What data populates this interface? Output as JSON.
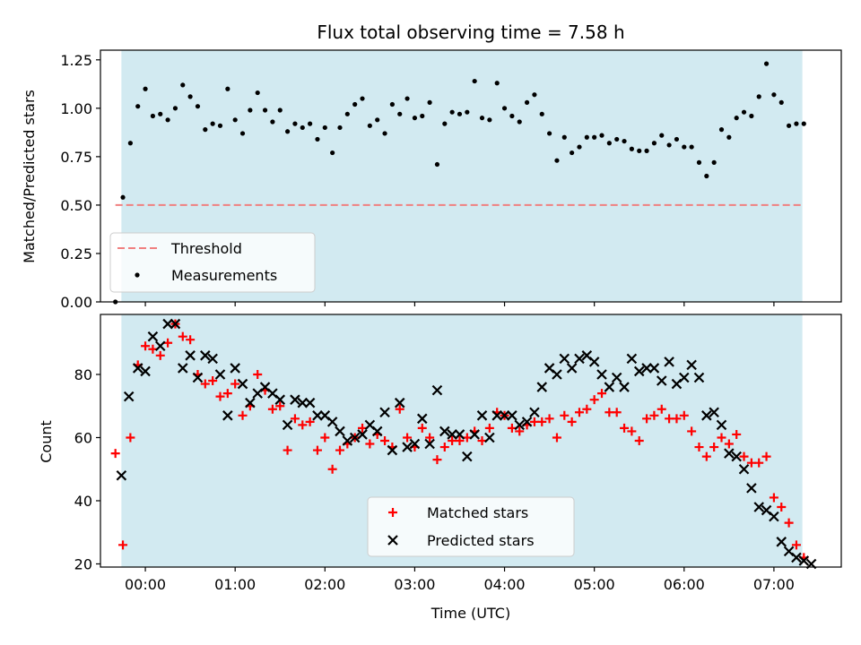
{
  "chart_data": [
    {
      "type": "scatter",
      "title": "Flux total observing time = 7.58 h",
      "ylabel": "Matched/Predicted stars",
      "ylim": [
        0,
        1.3
      ],
      "yticks": [
        "0.00",
        "0.25",
        "0.50",
        "0.75",
        "1.00",
        "1.25"
      ],
      "grid": false,
      "shaded_x_range": [
        "-00:16",
        "07:19"
      ],
      "threshold": {
        "name": "Threshold",
        "value": 0.5,
        "x_range": [
          "-00:20",
          "07:20"
        ],
        "color": "#f08080",
        "style": "dashed"
      },
      "series": [
        {
          "name": "Measurements",
          "color": "#000000",
          "marker": "dot",
          "x": [
            "-00:20",
            "-00:15",
            "-00:10",
            "-00:05",
            "00:00",
            "00:05",
            "00:10",
            "00:15",
            "00:20",
            "00:25",
            "00:30",
            "00:35",
            "00:40",
            "00:45",
            "00:50",
            "00:55",
            "01:00",
            "01:05",
            "01:10",
            "01:15",
            "01:20",
            "01:25",
            "01:30",
            "01:35",
            "01:40",
            "01:45",
            "01:50",
            "01:55",
            "02:00",
            "02:05",
            "02:10",
            "02:15",
            "02:20",
            "02:25",
            "02:30",
            "02:35",
            "02:40",
            "02:45",
            "02:50",
            "02:55",
            "03:00",
            "03:05",
            "03:10",
            "03:15",
            "03:20",
            "03:25",
            "03:30",
            "03:35",
            "03:40",
            "03:45",
            "03:50",
            "03:55",
            "04:00",
            "04:05",
            "04:10",
            "04:15",
            "04:20",
            "04:25",
            "04:30",
            "04:35",
            "04:40",
            "04:45",
            "04:50",
            "04:55",
            "05:00",
            "05:05",
            "05:10",
            "05:15",
            "05:20",
            "05:25",
            "05:30",
            "05:35",
            "05:40",
            "05:45",
            "05:50",
            "05:55",
            "06:00",
            "06:05",
            "06:10",
            "06:15",
            "06:20",
            "06:25",
            "06:30",
            "06:35",
            "06:40",
            "06:45",
            "06:50",
            "06:55",
            "07:00",
            "07:05",
            "07:10",
            "07:15",
            "07:20"
          ],
          "y": [
            0.0,
            0.54,
            0.82,
            1.01,
            1.1,
            0.96,
            0.97,
            0.94,
            1.0,
            1.12,
            1.06,
            1.01,
            0.89,
            0.92,
            0.91,
            1.1,
            0.94,
            0.87,
            0.99,
            1.08,
            0.99,
            0.93,
            0.99,
            0.88,
            0.92,
            0.9,
            0.92,
            0.84,
            0.9,
            0.77,
            0.9,
            0.97,
            1.02,
            1.05,
            0.91,
            0.94,
            0.87,
            1.02,
            0.97,
            1.05,
            0.95,
            0.96,
            1.03,
            0.71,
            0.92,
            0.98,
            0.97,
            0.98,
            1.14,
            0.95,
            0.94,
            1.13,
            1.0,
            0.96,
            0.93,
            1.03,
            1.07,
            0.97,
            0.87,
            0.73,
            0.85,
            0.77,
            0.8,
            0.85,
            0.85,
            0.86,
            0.82,
            0.84,
            0.83,
            0.79,
            0.78,
            0.78,
            0.82,
            0.86,
            0.81,
            0.84,
            0.8,
            0.8,
            0.72,
            0.65,
            0.72,
            0.89,
            0.85,
            0.95,
            0.98,
            0.96,
            1.06,
            1.23,
            1.07,
            1.03,
            0.91,
            0.92,
            0.92
          ]
        }
      ]
    },
    {
      "type": "scatter",
      "xlabel": "Time (UTC)",
      "ylabel": "Count",
      "ylim": [
        19,
        99
      ],
      "yticks": [
        "20",
        "40",
        "60",
        "80"
      ],
      "xlim": [
        "-00:30",
        "07:45"
      ],
      "xticks": [
        "00:00",
        "01:00",
        "02:00",
        "03:00",
        "04:00",
        "05:00",
        "06:00",
        "07:00"
      ],
      "grid": false,
      "shaded_x_range": [
        "-00:16",
        "07:19"
      ],
      "series": [
        {
          "name": "Matched stars",
          "color": "#ff0000",
          "marker": "+",
          "x": [
            "-00:20",
            "-00:15",
            "-00:10",
            "-00:05",
            "00:00",
            "00:05",
            "00:10",
            "00:15",
            "00:20",
            "00:25",
            "00:30",
            "00:35",
            "00:40",
            "00:45",
            "00:50",
            "00:55",
            "01:00",
            "01:05",
            "01:10",
            "01:15",
            "01:20",
            "01:25",
            "01:30",
            "01:35",
            "01:40",
            "01:45",
            "01:50",
            "01:55",
            "02:00",
            "02:05",
            "02:10",
            "02:15",
            "02:20",
            "02:25",
            "02:30",
            "02:35",
            "02:40",
            "02:45",
            "02:50",
            "02:55",
            "03:00",
            "03:05",
            "03:10",
            "03:15",
            "03:20",
            "03:25",
            "03:30",
            "03:35",
            "03:40",
            "03:45",
            "03:50",
            "03:55",
            "04:00",
            "04:05",
            "04:10",
            "04:15",
            "04:20",
            "04:25",
            "04:30",
            "04:35",
            "04:40",
            "04:45",
            "04:50",
            "04:55",
            "05:00",
            "05:05",
            "05:10",
            "05:15",
            "05:20",
            "05:25",
            "05:30",
            "05:35",
            "05:40",
            "05:45",
            "05:50",
            "05:55",
            "06:00",
            "06:05",
            "06:10",
            "06:15",
            "06:20",
            "06:25",
            "06:30",
            "06:35",
            "06:40",
            "06:45",
            "06:50",
            "06:55",
            "07:00",
            "07:05",
            "07:10",
            "07:15",
            "07:20"
          ],
          "y": [
            55,
            26,
            60,
            83,
            89,
            88,
            86,
            90,
            96,
            92,
            91,
            80,
            77,
            78,
            73,
            74,
            77,
            67,
            70,
            80,
            75,
            69,
            70,
            56,
            66,
            64,
            65,
            56,
            60,
            50,
            56,
            58,
            60,
            63,
            58,
            61,
            59,
            57,
            69,
            60,
            57,
            63,
            60,
            53,
            57,
            59,
            59,
            60,
            62,
            59,
            63,
            68,
            67,
            63,
            62,
            64,
            65,
            65,
            66,
            60,
            67,
            65,
            68,
            69,
            72,
            74,
            68,
            68,
            63,
            62,
            59,
            66,
            67,
            69,
            66,
            66,
            67,
            62,
            57,
            54,
            57,
            60,
            58,
            61,
            54,
            52,
            52,
            54,
            41,
            38,
            33,
            26,
            22
          ]
        },
        {
          "name": "Predicted stars",
          "color": "#000000",
          "marker": "x",
          "x": [
            "-00:16",
            "-00:11",
            "-00:05",
            "00:00",
            "00:05",
            "00:10",
            "00:15",
            "00:20",
            "00:25",
            "00:30",
            "00:35",
            "00:40",
            "00:45",
            "00:50",
            "00:55",
            "01:00",
            "01:05",
            "01:10",
            "01:15",
            "01:20",
            "01:25",
            "01:30",
            "01:35",
            "01:40",
            "01:45",
            "01:50",
            "01:55",
            "02:00",
            "02:05",
            "02:10",
            "02:15",
            "02:20",
            "02:25",
            "02:30",
            "02:35",
            "02:40",
            "02:45",
            "02:50",
            "02:55",
            "03:00",
            "03:05",
            "03:10",
            "03:15",
            "03:20",
            "03:25",
            "03:30",
            "03:35",
            "03:40",
            "03:45",
            "03:50",
            "03:55",
            "04:00",
            "04:05",
            "04:10",
            "04:15",
            "04:20",
            "04:25",
            "04:30",
            "04:35",
            "04:40",
            "04:45",
            "04:50",
            "04:55",
            "05:00",
            "05:05",
            "05:10",
            "05:15",
            "05:20",
            "05:25",
            "05:30",
            "05:35",
            "05:40",
            "05:45",
            "05:50",
            "05:55",
            "06:00",
            "06:05",
            "06:10",
            "06:15",
            "06:20",
            "06:25",
            "06:30",
            "06:35",
            "06:40",
            "06:45",
            "06:50",
            "06:55",
            "07:00",
            "07:05",
            "07:10",
            "07:15",
            "07:20",
            "07:25"
          ],
          "y": [
            48,
            73,
            82,
            81,
            92,
            89,
            96,
            96,
            82,
            86,
            79,
            86,
            85,
            80,
            67,
            82,
            77,
            71,
            74,
            76,
            74,
            72,
            64,
            72,
            71,
            71,
            67,
            67,
            65,
            62,
            59,
            60,
            61,
            64,
            62,
            68,
            56,
            71,
            57,
            58,
            66,
            58,
            75,
            62,
            61,
            61,
            54,
            61,
            67,
            60,
            67,
            67,
            67,
            64,
            65,
            68,
            76,
            82,
            80,
            85,
            82,
            85,
            86,
            84,
            80,
            76,
            79,
            76,
            85,
            81,
            82,
            82,
            78,
            84,
            77,
            79,
            83,
            79,
            67,
            68,
            64,
            55,
            54,
            50,
            44,
            38,
            37,
            35,
            27,
            24,
            22,
            21,
            20
          ]
        }
      ]
    }
  ]
}
